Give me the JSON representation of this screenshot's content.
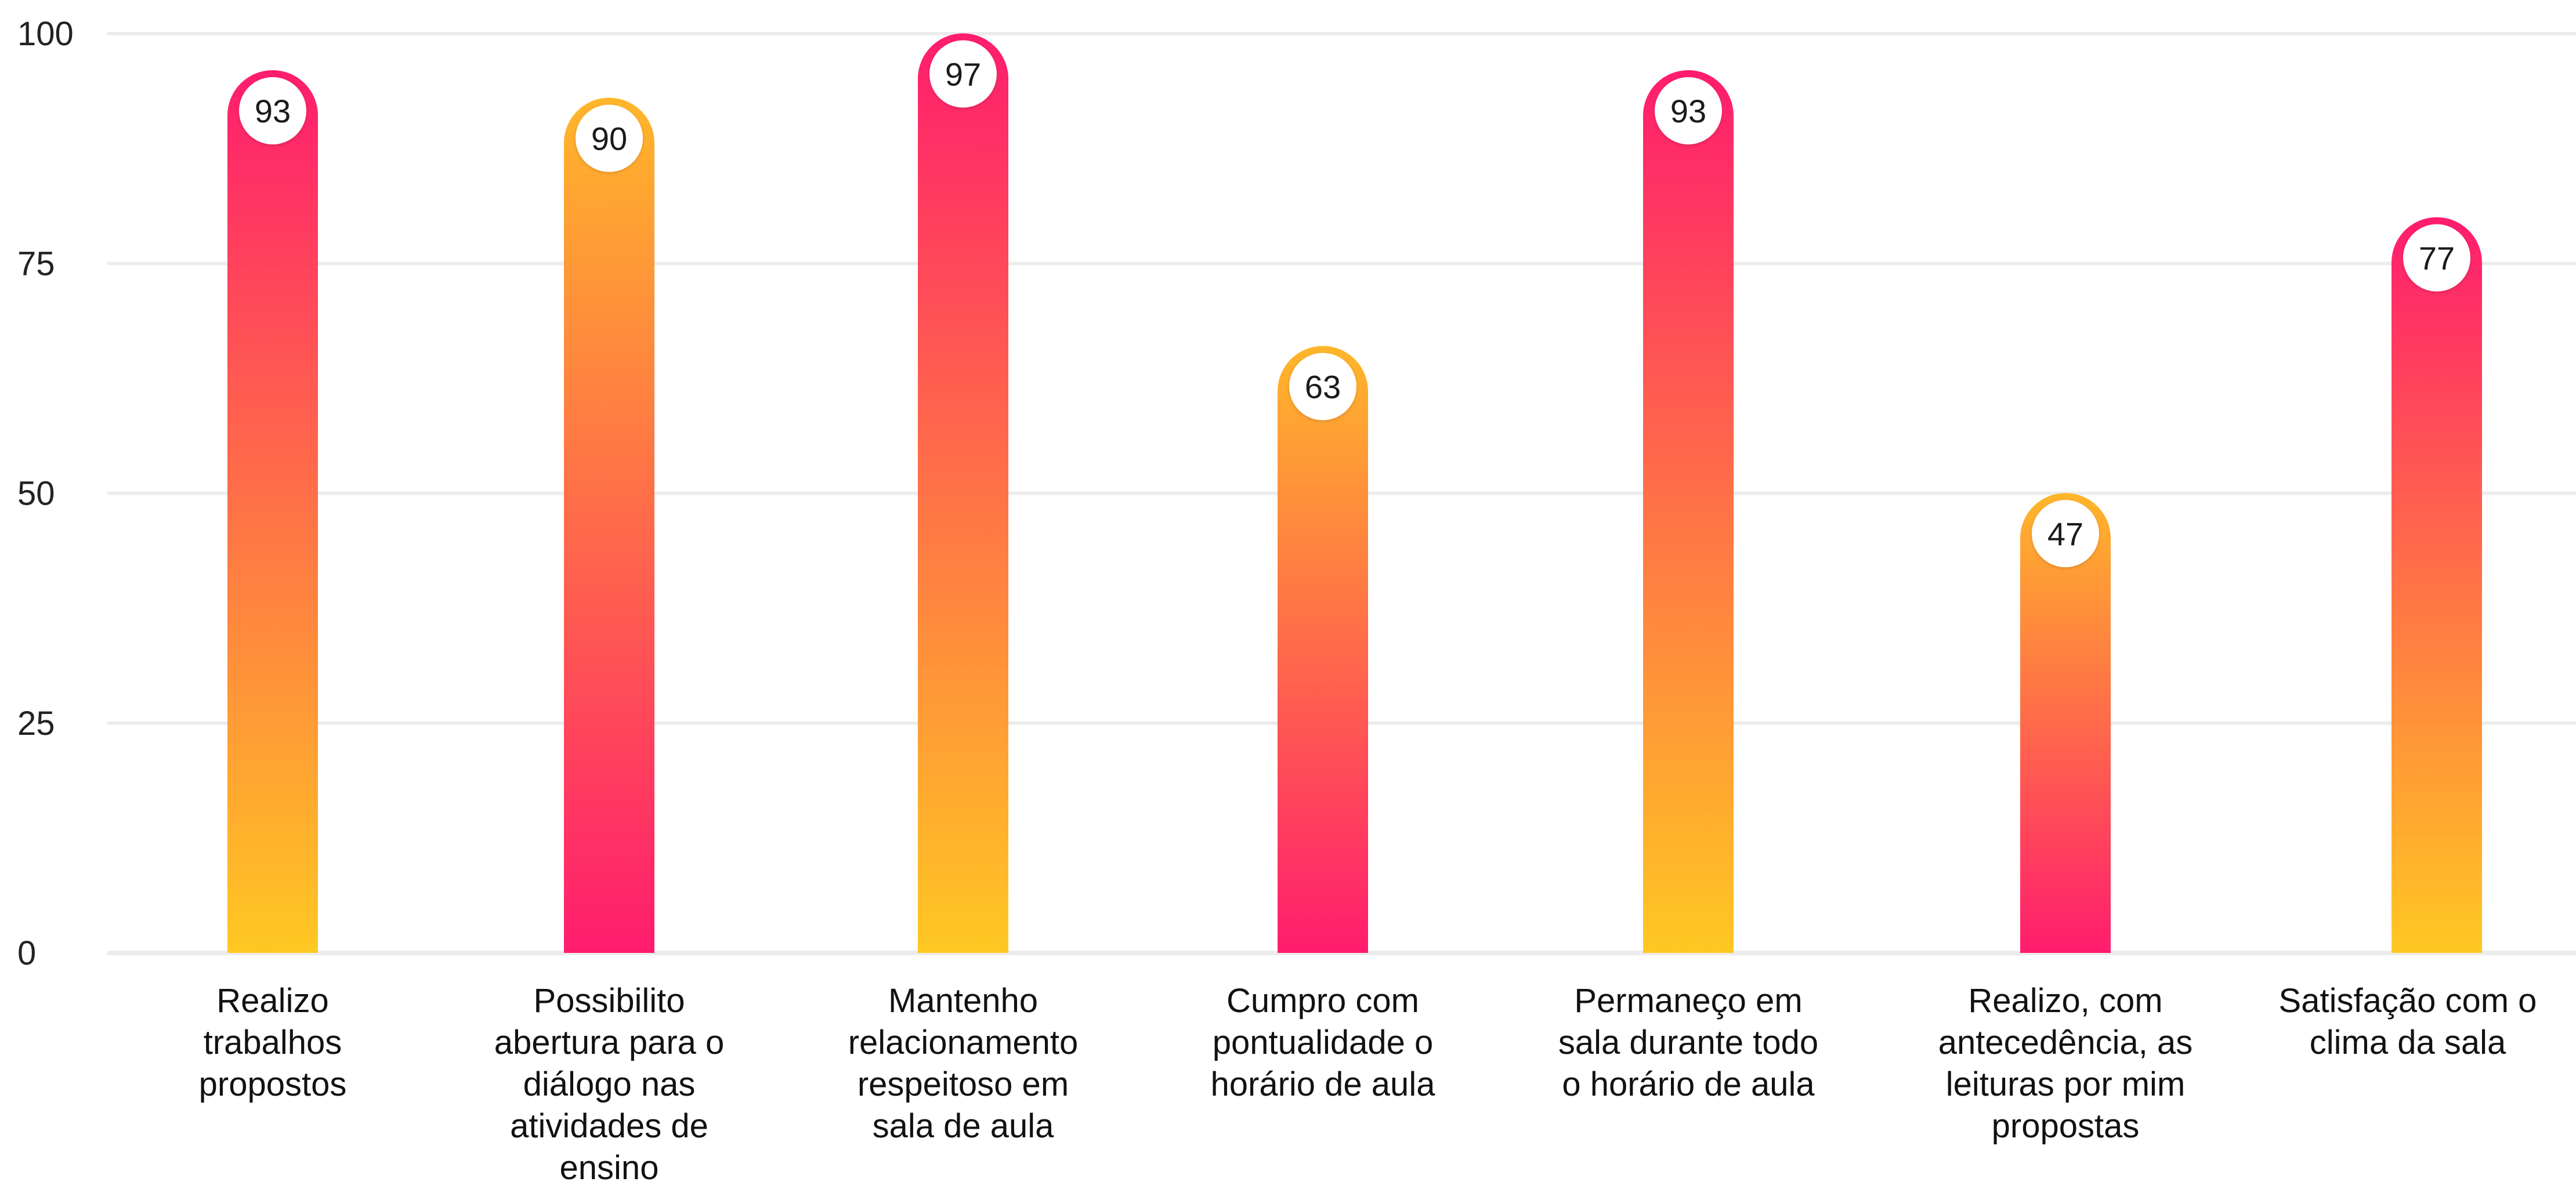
{
  "chart_data": {
    "type": "bar",
    "title": "",
    "xlabel": "",
    "ylabel": "",
    "ylim": [
      0,
      100
    ],
    "y_ticks": [
      "0",
      "25",
      "50",
      "75",
      "100"
    ],
    "grid": true,
    "categories": [
      [
        "Realizo",
        "trabalhos",
        "propostos"
      ],
      [
        "Possibilito",
        "abertura para o",
        "diálogo nas",
        "atividades de",
        "ensino"
      ],
      [
        "Mantenho",
        "relacionamento",
        "respeitoso em",
        "sala de aula"
      ],
      [
        "Cumpro com",
        "pontualidade o",
        "horário de aula"
      ],
      [
        "Permaneço em",
        "sala durante todo",
        "o horário de aula"
      ],
      [
        "Realizo, com",
        "antecedência, as",
        "leituras por mim",
        "propostas"
      ],
      [
        "Satisfação com o",
        "clima da sala"
      ]
    ],
    "values": [
      93,
      90,
      97,
      63,
      93,
      47,
      77
    ],
    "value_labels": [
      "93",
      "90",
      "97",
      "63",
      "93",
      "47",
      "77"
    ],
    "bar_gradients": [
      "pink-top",
      "orange-top",
      "pink-top",
      "orange-top",
      "pink-top",
      "orange-top",
      "pink-top"
    ],
    "colors": {
      "pink": "#ff1c6e",
      "coral": "#ff6a4a",
      "amber": "#ffb62a",
      "yellow": "#ffcc22",
      "grid": "#ececec"
    }
  }
}
